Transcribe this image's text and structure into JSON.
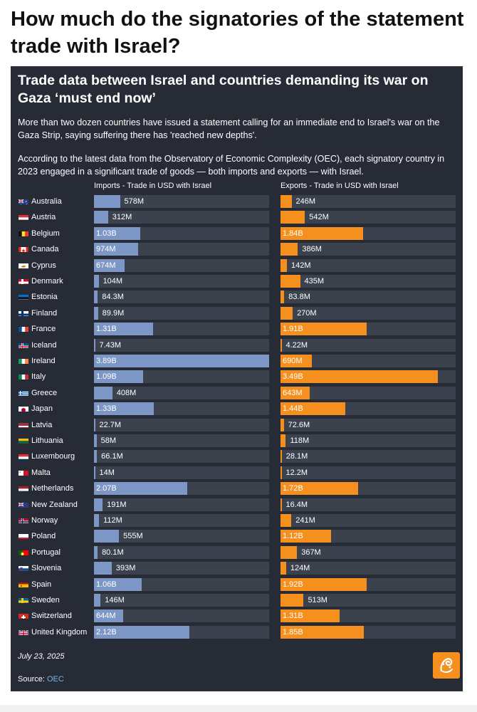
{
  "page": {
    "title": "How much do the signatories of the statement trade with Israel?"
  },
  "card": {
    "title": "Trade data between Israel and countries demanding its war on Gaza ‘must end now’",
    "para1": "More than two dozen countries have issued a statement calling for an immediate end to Israel's war on the Gaza Strip, saying suffering there has 'reached new depths'.",
    "para2": "According to the latest data from the Observatory of Economic Complexity (OEC), each signatory country in 2023 engaged in a significant trade of goods — both imports and exports — with Israel.",
    "date": "July 23, 2025",
    "source_label": "Source: ",
    "source_name": "OEC"
  },
  "colors": {
    "imports": "#7c97c6",
    "exports": "#f5901f",
    "track": "#3b414d",
    "background": "#262b36"
  },
  "chart_data": {
    "type": "bar",
    "orientation": "horizontal",
    "categories": [
      "Australia",
      "Austria",
      "Belgium",
      "Canada",
      "Cyprus",
      "Denmark",
      "Estonia",
      "Finland",
      "France",
      "Iceland",
      "Ireland",
      "Italy",
      "Greece",
      "Japan",
      "Latvia",
      "Lithuania",
      "Luxembourg",
      "Malta",
      "Netherlands",
      "New Zealand",
      "Norway",
      "Poland",
      "Portugal",
      "Slovenia",
      "Spain",
      "Sweden",
      "Switzerland",
      "United Kingdom"
    ],
    "series": [
      {
        "name": "Imports - Trade in USD with Israel",
        "values": [
          578000000,
          312000000,
          1030000000,
          974000000,
          674000000,
          104000000,
          84300000,
          89900000,
          1310000000,
          7430000,
          3890000000,
          1090000000,
          408000000,
          1330000000,
          22700000,
          58000000,
          66100000,
          14000000,
          2070000000,
          191000000,
          112000000,
          555000000,
          80100000,
          393000000,
          1060000000,
          146000000,
          644000000,
          2120000000
        ],
        "labels": [
          "578M",
          "312M",
          "1.03B",
          "974M",
          "674M",
          "104M",
          "84.3M",
          "89.9M",
          "1.31B",
          "7.43M",
          "3.89B",
          "1.09B",
          "408M",
          "1.33B",
          "22.7M",
          "58M",
          "66.1M",
          "14M",
          "2.07B",
          "191M",
          "112M",
          "555M",
          "80.1M",
          "393M",
          "1.06B",
          "146M",
          "644M",
          "2.12B"
        ]
      },
      {
        "name": "Exports - Trade in USD with Israel",
        "values": [
          246000000,
          542000000,
          1840000000,
          386000000,
          142000000,
          435000000,
          83800000,
          270000000,
          1910000000,
          4220000,
          690000000,
          3490000000,
          643000000,
          1440000000,
          72600000,
          118000000,
          28100000,
          12200000,
          1720000000,
          16400000,
          241000000,
          1120000000,
          367000000,
          124000000,
          1920000000,
          513000000,
          1310000000,
          1850000000
        ],
        "labels": [
          "246M",
          "542M",
          "1.84B",
          "386M",
          "142M",
          "435M",
          "83.8M",
          "270M",
          "1.91B",
          "4.22M",
          "690M",
          "3.49B",
          "643M",
          "1.44B",
          "72.6M",
          "118M",
          "28.1M",
          "12.2M",
          "1.72B",
          "16.4M",
          "241M",
          "1.12B",
          "367M",
          "124M",
          "1.92B",
          "513M",
          "1.31B",
          "1.85B"
        ]
      }
    ],
    "xlim_imports": [
      0,
      3890000000
    ],
    "xlim_exports": [
      0,
      3890000000
    ],
    "grid": false,
    "legend": "none",
    "flags": [
      "au",
      "at",
      "be",
      "ca",
      "cy",
      "dk",
      "ee",
      "fi",
      "fr",
      "is",
      "ie",
      "it",
      "gr",
      "jp",
      "lv",
      "lt",
      "lu",
      "mt",
      "nl",
      "nz",
      "no",
      "pl",
      "pt",
      "si",
      "es",
      "se",
      "ch",
      "gb"
    ]
  }
}
